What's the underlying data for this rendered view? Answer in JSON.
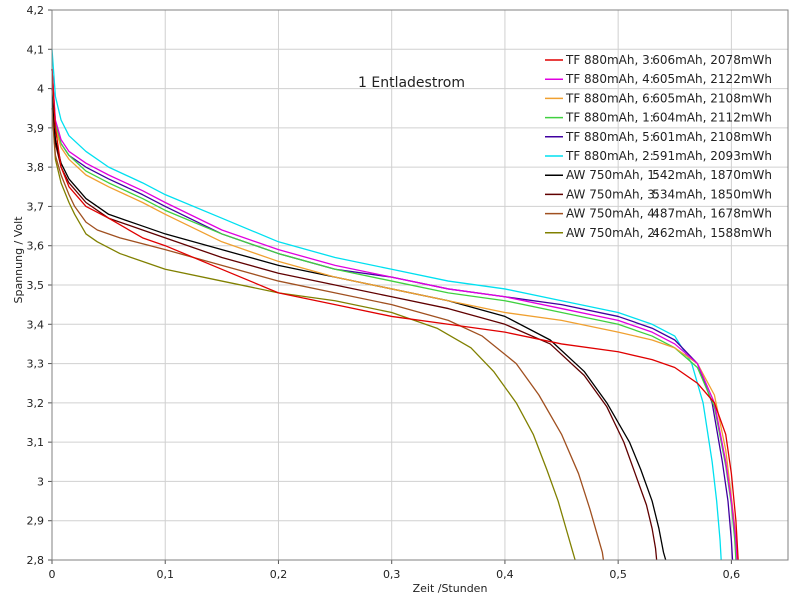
{
  "chart_data": {
    "type": "line",
    "title": "1 Entladestrom",
    "xlabel": "Zeit /Stunden",
    "ylabel": "Spannung / Volt",
    "xlim": [
      0,
      0.65
    ],
    "ylim": [
      2.8,
      4.2
    ],
    "grid": true,
    "legend_position": "top-right",
    "x_ticks": [
      "0",
      "0,1",
      "0,2",
      "0,3",
      "0,4",
      "0,5",
      "0,6"
    ],
    "y_ticks": [
      "2,8",
      "2,9",
      "3",
      "3,1",
      "3,2",
      "3,3",
      "3,4",
      "3,5",
      "3,6",
      "3,7",
      "3,8",
      "3,9",
      "4",
      "4,1",
      "4,2"
    ],
    "series": [
      {
        "name": "TF 880mAh, 3:",
        "info": "606mAh, 2078mWh",
        "color": "#e00000",
        "x": [
          0,
          0.003,
          0.008,
          0.015,
          0.03,
          0.05,
          0.08,
          0.1,
          0.15,
          0.2,
          0.25,
          0.3,
          0.35,
          0.4,
          0.45,
          0.5,
          0.53,
          0.55,
          0.57,
          0.585,
          0.595,
          0.6,
          0.604,
          0.606
        ],
        "y": [
          4.05,
          3.9,
          3.8,
          3.75,
          3.7,
          3.67,
          3.62,
          3.6,
          3.54,
          3.48,
          3.45,
          3.42,
          3.4,
          3.38,
          3.35,
          3.33,
          3.31,
          3.29,
          3.25,
          3.2,
          3.12,
          3.02,
          2.9,
          2.8
        ]
      },
      {
        "name": "TF 880mAh, 4:",
        "info": "605mAh, 2122mWh",
        "color": "#e000e0",
        "x": [
          0,
          0.003,
          0.008,
          0.015,
          0.03,
          0.05,
          0.08,
          0.1,
          0.15,
          0.2,
          0.25,
          0.3,
          0.35,
          0.4,
          0.45,
          0.5,
          0.53,
          0.55,
          0.57,
          0.585,
          0.595,
          0.6,
          0.604,
          0.605
        ],
        "y": [
          4.05,
          3.92,
          3.87,
          3.84,
          3.81,
          3.78,
          3.74,
          3.71,
          3.64,
          3.59,
          3.55,
          3.52,
          3.49,
          3.47,
          3.44,
          3.41,
          3.38,
          3.35,
          3.3,
          3.2,
          3.05,
          2.95,
          2.85,
          2.8
        ]
      },
      {
        "name": "TF 880mAh, 6:",
        "info": "605mAh, 2108mWh",
        "color": "#f0a030",
        "x": [
          0,
          0.003,
          0.008,
          0.015,
          0.03,
          0.05,
          0.08,
          0.1,
          0.15,
          0.2,
          0.25,
          0.3,
          0.35,
          0.4,
          0.45,
          0.5,
          0.53,
          0.55,
          0.57,
          0.585,
          0.595,
          0.6,
          0.604,
          0.605
        ],
        "y": [
          4.05,
          3.9,
          3.85,
          3.82,
          3.78,
          3.75,
          3.71,
          3.68,
          3.61,
          3.56,
          3.52,
          3.49,
          3.46,
          3.43,
          3.41,
          3.38,
          3.36,
          3.34,
          3.3,
          3.22,
          3.08,
          2.96,
          2.86,
          2.8
        ]
      },
      {
        "name": "TF 880mAh, 1:",
        "info": "604mAh, 2112mWh",
        "color": "#40d040",
        "x": [
          0,
          0.003,
          0.008,
          0.015,
          0.03,
          0.05,
          0.08,
          0.1,
          0.15,
          0.2,
          0.25,
          0.3,
          0.35,
          0.4,
          0.45,
          0.5,
          0.53,
          0.55,
          0.57,
          0.585,
          0.595,
          0.6,
          0.603,
          0.604
        ],
        "y": [
          4.05,
          3.91,
          3.86,
          3.83,
          3.79,
          3.76,
          3.72,
          3.69,
          3.63,
          3.58,
          3.54,
          3.51,
          3.48,
          3.46,
          3.43,
          3.4,
          3.37,
          3.34,
          3.29,
          3.19,
          3.04,
          2.94,
          2.85,
          2.8
        ]
      },
      {
        "name": "TF 880mAh, 5:",
        "info": "601mAh, 2108mWh",
        "color": "#4000a0",
        "x": [
          0,
          0.003,
          0.008,
          0.015,
          0.03,
          0.05,
          0.08,
          0.1,
          0.15,
          0.2,
          0.25,
          0.3,
          0.35,
          0.4,
          0.45,
          0.5,
          0.53,
          0.55,
          0.57,
          0.583,
          0.592,
          0.597,
          0.6,
          0.601
        ],
        "y": [
          4.05,
          3.91,
          3.86,
          3.83,
          3.8,
          3.77,
          3.73,
          3.7,
          3.63,
          3.58,
          3.54,
          3.52,
          3.49,
          3.47,
          3.45,
          3.42,
          3.39,
          3.36,
          3.3,
          3.2,
          3.05,
          2.95,
          2.85,
          2.8
        ]
      },
      {
        "name": "TF 880mAh, 2:",
        "info": "591mAh, 2093mWh",
        "color": "#00e0f0",
        "x": [
          0,
          0.003,
          0.008,
          0.015,
          0.03,
          0.05,
          0.08,
          0.1,
          0.15,
          0.2,
          0.25,
          0.3,
          0.35,
          0.4,
          0.45,
          0.5,
          0.53,
          0.55,
          0.565,
          0.575,
          0.583,
          0.587,
          0.59,
          0.591
        ],
        "y": [
          4.1,
          3.98,
          3.92,
          3.88,
          3.84,
          3.8,
          3.76,
          3.73,
          3.67,
          3.61,
          3.57,
          3.54,
          3.51,
          3.49,
          3.46,
          3.43,
          3.4,
          3.37,
          3.3,
          3.2,
          3.05,
          2.95,
          2.85,
          2.8
        ]
      },
      {
        "name": "AW 750mAh, 1:",
        "info": "542mAh, 1870mWh",
        "color": "#000000",
        "x": [
          0,
          0.003,
          0.008,
          0.015,
          0.03,
          0.05,
          0.08,
          0.1,
          0.15,
          0.2,
          0.25,
          0.3,
          0.35,
          0.4,
          0.44,
          0.47,
          0.49,
          0.51,
          0.52,
          0.53,
          0.536,
          0.54,
          0.542
        ],
        "y": [
          4.0,
          3.87,
          3.81,
          3.77,
          3.72,
          3.68,
          3.65,
          3.63,
          3.59,
          3.55,
          3.52,
          3.49,
          3.46,
          3.42,
          3.36,
          3.28,
          3.2,
          3.1,
          3.03,
          2.95,
          2.88,
          2.82,
          2.8
        ]
      },
      {
        "name": "AW 750mAh, 3:",
        "info": "534mAh, 1850mWh",
        "color": "#600000",
        "x": [
          0,
          0.003,
          0.008,
          0.015,
          0.03,
          0.05,
          0.08,
          0.1,
          0.15,
          0.2,
          0.25,
          0.3,
          0.35,
          0.4,
          0.44,
          0.47,
          0.49,
          0.505,
          0.515,
          0.525,
          0.53,
          0.533,
          0.534
        ],
        "y": [
          4.0,
          3.86,
          3.8,
          3.76,
          3.71,
          3.67,
          3.64,
          3.62,
          3.57,
          3.53,
          3.5,
          3.47,
          3.44,
          3.4,
          3.35,
          3.27,
          3.19,
          3.1,
          3.02,
          2.94,
          2.88,
          2.83,
          2.8
        ]
      },
      {
        "name": "AW 750mAh, 4:",
        "info": "487mAh, 1678mWh",
        "color": "#a05020",
        "x": [
          0,
          0.003,
          0.008,
          0.015,
          0.02,
          0.03,
          0.04,
          0.06,
          0.1,
          0.15,
          0.2,
          0.25,
          0.3,
          0.35,
          0.38,
          0.41,
          0.43,
          0.45,
          0.465,
          0.475,
          0.482,
          0.486,
          0.487
        ],
        "y": [
          3.95,
          3.83,
          3.78,
          3.73,
          3.7,
          3.66,
          3.64,
          3.62,
          3.59,
          3.55,
          3.51,
          3.48,
          3.45,
          3.41,
          3.37,
          3.3,
          3.22,
          3.12,
          3.02,
          2.93,
          2.86,
          2.82,
          2.8
        ]
      },
      {
        "name": "AW 750mAh, 2:",
        "info": "462mAh, 1588mWh",
        "color": "#808000",
        "x": [
          0,
          0.003,
          0.008,
          0.015,
          0.02,
          0.03,
          0.04,
          0.06,
          0.1,
          0.15,
          0.2,
          0.25,
          0.3,
          0.34,
          0.37,
          0.39,
          0.41,
          0.425,
          0.437,
          0.447,
          0.455,
          0.46,
          0.462
        ],
        "y": [
          3.95,
          3.82,
          3.76,
          3.71,
          3.68,
          3.63,
          3.61,
          3.58,
          3.54,
          3.51,
          3.48,
          3.46,
          3.43,
          3.39,
          3.34,
          3.28,
          3.2,
          3.12,
          3.03,
          2.95,
          2.87,
          2.82,
          2.8
        ]
      }
    ]
  }
}
